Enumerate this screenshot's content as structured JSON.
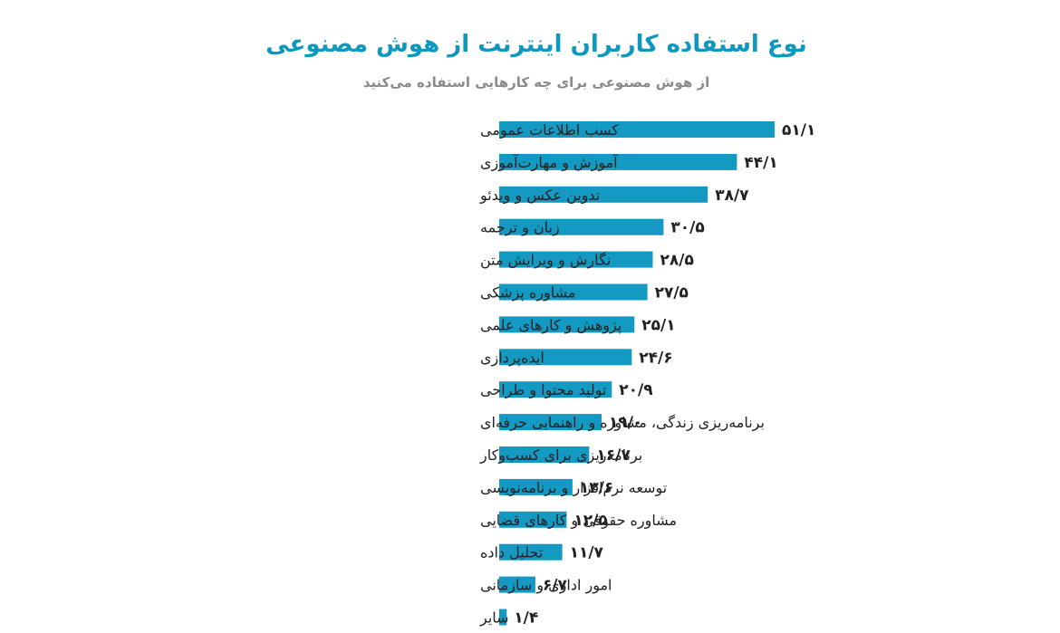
{
  "colors": {
    "title": "#0f98bf",
    "bar": "#1499c2",
    "subtitle": "#8a8a8a",
    "text": "#222222"
  },
  "chart_data": {
    "type": "bar",
    "orientation": "horizontal",
    "title": "نوع استفاده کاربران اینترنت از هوش مصنوعی",
    "subtitle": "از هوش مصنوعی برای چه کارهایی استفاده می‌کنید",
    "xlim": [
      0,
      51.1
    ],
    "grid": false,
    "categories": [
      "کسب اطلاعات عمومی",
      "آموزش و مهارت‌آموزی",
      "تدوین عکس و ویدئو",
      "زبان و ترجمه",
      "نگارش و ویرایش متن",
      "مشاوره پزشکی",
      "پژوهش و کارهای علمی",
      "ایده‌پردازی",
      "تولید محتوا و طراحی",
      "برنامه‌ریزی زندگی، مشاوره و راهنمایی حرفه‌ای",
      "برنامه‌ریزی برای کسب‌وکار",
      "توسعه نرم‌افزار و برنامه‌نویسی",
      "مشاوره حقوقی و کارهای قضایی",
      "تحلیل داده",
      "امور اداری و سازمانی",
      "سایر"
    ],
    "values": [
      51.1,
      44.1,
      38.7,
      30.5,
      28.5,
      27.5,
      25.1,
      24.6,
      20.9,
      19.0,
      16.7,
      13.6,
      12.5,
      11.7,
      6.7,
      1.4
    ],
    "value_labels": [
      "۵۱/۱",
      "۴۴/۱",
      "۳۸/۷",
      "۳۰/۵",
      "۲۸/۵",
      "۲۷/۵",
      "۲۵/۱",
      "۲۴/۶",
      "۲۰/۹",
      "۱۹/۰",
      "۱۶/۷",
      "۱۳/۶",
      "۱۲/۵",
      "۱۱/۷",
      "۶/۷",
      "۱/۴"
    ]
  }
}
